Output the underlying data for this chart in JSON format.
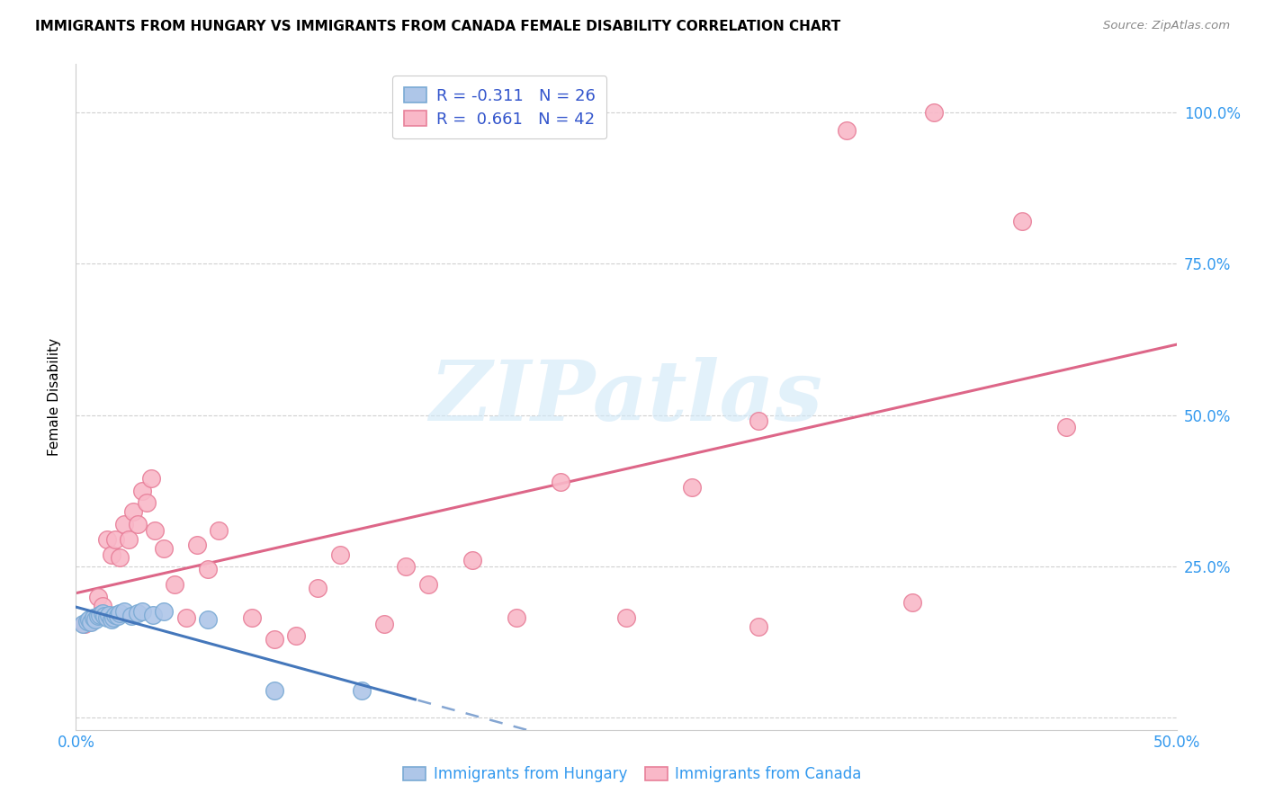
{
  "title": "IMMIGRANTS FROM HUNGARY VS IMMIGRANTS FROM CANADA FEMALE DISABILITY CORRELATION CHART",
  "source": "Source: ZipAtlas.com",
  "ylabel": "Female Disability",
  "xlim": [
    0.0,
    0.5
  ],
  "ylim": [
    -0.02,
    1.08
  ],
  "yticks": [
    0.0,
    0.25,
    0.5,
    0.75,
    1.0
  ],
  "ytick_labels": [
    "",
    "25.0%",
    "50.0%",
    "75.0%",
    "100.0%"
  ],
  "xticks": [
    0.0,
    0.1,
    0.2,
    0.3,
    0.4,
    0.5
  ],
  "xtick_labels": [
    "0.0%",
    "",
    "",
    "",
    "",
    "50.0%"
  ],
  "hungary_color": "#aec6e8",
  "canada_color": "#f9b8c8",
  "hungary_edge": "#7aaad4",
  "canada_edge": "#e8809a",
  "hungary_line_color": "#4477bb",
  "canada_line_color": "#dd6688",
  "R_hungary": -0.311,
  "N_hungary": 26,
  "R_canada": 0.661,
  "N_canada": 42,
  "hungary_x": [
    0.003,
    0.005,
    0.006,
    0.007,
    0.008,
    0.009,
    0.01,
    0.011,
    0.012,
    0.013,
    0.014,
    0.015,
    0.016,
    0.017,
    0.018,
    0.019,
    0.02,
    0.022,
    0.025,
    0.028,
    0.03,
    0.035,
    0.04,
    0.06,
    0.09,
    0.13
  ],
  "hungary_y": [
    0.155,
    0.16,
    0.162,
    0.158,
    0.165,
    0.163,
    0.168,
    0.17,
    0.172,
    0.168,
    0.165,
    0.17,
    0.162,
    0.165,
    0.17,
    0.168,
    0.172,
    0.175,
    0.168,
    0.172,
    0.175,
    0.17,
    0.175,
    0.162,
    0.045,
    0.045
  ],
  "canada_x": [
    0.004,
    0.007,
    0.01,
    0.012,
    0.014,
    0.016,
    0.018,
    0.02,
    0.022,
    0.024,
    0.026,
    0.028,
    0.03,
    0.032,
    0.034,
    0.036,
    0.04,
    0.045,
    0.05,
    0.055,
    0.06,
    0.065,
    0.08,
    0.09,
    0.1,
    0.11,
    0.12,
    0.14,
    0.15,
    0.16,
    0.18,
    0.2,
    0.22,
    0.25,
    0.28,
    0.31,
    0.35,
    0.39,
    0.43,
    0.45,
    0.31,
    0.38
  ],
  "canada_y": [
    0.155,
    0.16,
    0.2,
    0.185,
    0.295,
    0.27,
    0.295,
    0.265,
    0.32,
    0.295,
    0.34,
    0.32,
    0.375,
    0.355,
    0.395,
    0.31,
    0.28,
    0.22,
    0.165,
    0.285,
    0.245,
    0.31,
    0.165,
    0.13,
    0.135,
    0.215,
    0.27,
    0.155,
    0.25,
    0.22,
    0.26,
    0.165,
    0.39,
    0.165,
    0.38,
    0.49,
    0.97,
    1.0,
    0.82,
    0.48,
    0.15,
    0.19
  ],
  "hungary_line_solid_end": 0.155,
  "watermark_text": "ZIPatlas",
  "watermark_color": "#d0e8f8",
  "watermark_alpha": 0.6,
  "background_color": "#ffffff",
  "grid_color": "#d0d0d0",
  "title_fontsize": 11,
  "axis_label_fontsize": 11,
  "tick_fontsize": 12,
  "legend_fontsize": 13
}
